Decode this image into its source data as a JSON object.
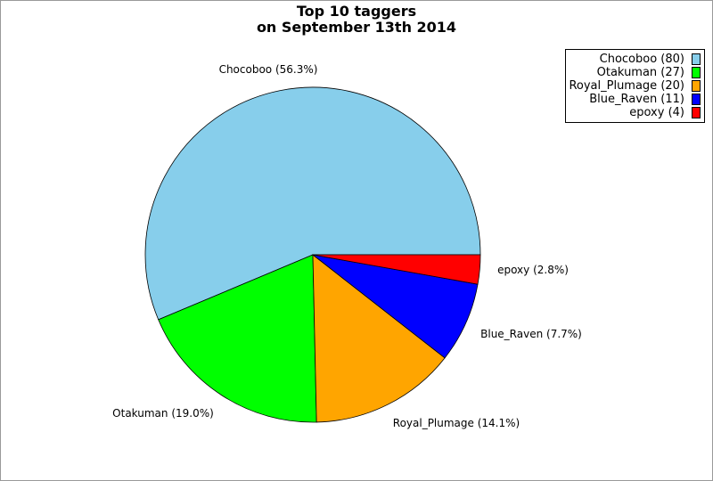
{
  "chart_data": {
    "type": "pie",
    "title": [
      "Top 10 taggers",
      "on September 13th 2014"
    ],
    "slices": [
      {
        "name": "Chocoboo",
        "value": 80,
        "percent_label": "Chocoboo (56.3%)",
        "legend_label": "Chocoboo (80)",
        "color": "#87ceeb"
      },
      {
        "name": "Otakuman",
        "value": 27,
        "percent_label": "Otakuman (19.0%)",
        "legend_label": "Otakuman (27)",
        "color": "#00ff00"
      },
      {
        "name": "Royal_Plumage",
        "value": 20,
        "percent_label": "Royal_Plumage (14.1%)",
        "legend_label": "Royal_Plumage (20)",
        "color": "#ffa500"
      },
      {
        "name": "Blue_Raven",
        "value": 11,
        "percent_label": "Blue_Raven (7.7%)",
        "legend_label": "Blue_Raven (11)",
        "color": "#0000ff"
      },
      {
        "name": "epoxy",
        "value": 4,
        "percent_label": "epoxy (2.8%)",
        "legend_label": "epoxy (4)",
        "color": "#ff0000"
      }
    ],
    "legend_position": "top-right"
  }
}
